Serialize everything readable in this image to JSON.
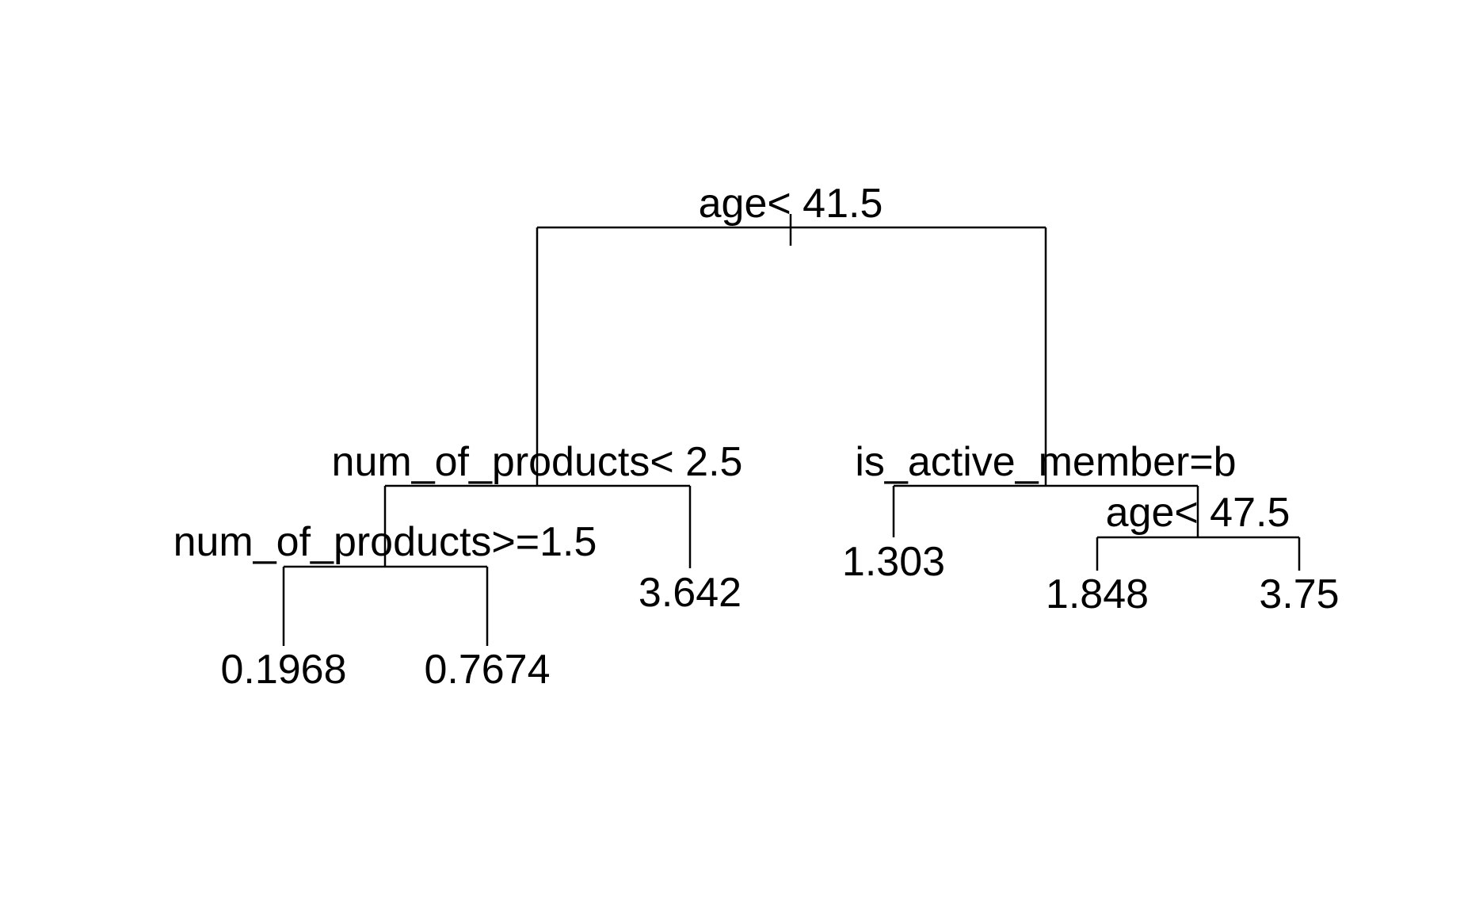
{
  "tree": {
    "type": "regression-tree",
    "line_color": "#000000",
    "text_color": "#000000",
    "background_color": "#ffffff",
    "splits": [
      {
        "id": "root",
        "label": "age< 41.5"
      },
      {
        "id": "left",
        "label": "num_of_products< 2.5"
      },
      {
        "id": "left-left",
        "label": "num_of_products>=1.5"
      },
      {
        "id": "right",
        "label": "is_active_member=b"
      },
      {
        "id": "right-right",
        "label": "age< 47.5"
      }
    ],
    "leaves": [
      {
        "id": "leaf-1",
        "value": "0.1968"
      },
      {
        "id": "leaf-2",
        "value": "0.7674"
      },
      {
        "id": "leaf-3",
        "value": "3.642"
      },
      {
        "id": "leaf-4",
        "value": "1.303"
      },
      {
        "id": "leaf-5",
        "value": "1.848"
      },
      {
        "id": "leaf-6",
        "value": "3.75"
      }
    ]
  }
}
